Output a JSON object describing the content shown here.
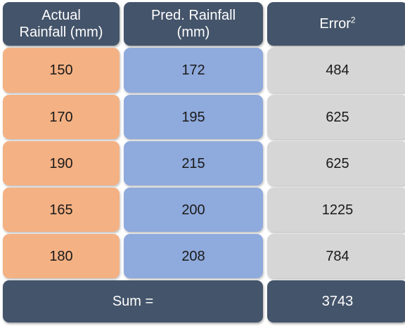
{
  "header": {
    "actual": "Actual\nRainfall (mm)",
    "pred": "Pred. Rainfall\n(mm)",
    "error": "Error",
    "error_sup": "2"
  },
  "rows": [
    {
      "actual": "150",
      "pred": "172",
      "error": "484"
    },
    {
      "actual": "170",
      "pred": "195",
      "error": "625"
    },
    {
      "actual": "190",
      "pred": "215",
      "error": "625"
    },
    {
      "actual": "165",
      "pred": "200",
      "error": "1225"
    },
    {
      "actual": "180",
      "pred": "208",
      "error": "784"
    }
  ],
  "footer": {
    "label": "Sum =",
    "value": "3743"
  },
  "colors": {
    "header": "#44546a",
    "actual": "#f4b183",
    "pred": "#8faadc",
    "error": "#d6d6d6"
  }
}
